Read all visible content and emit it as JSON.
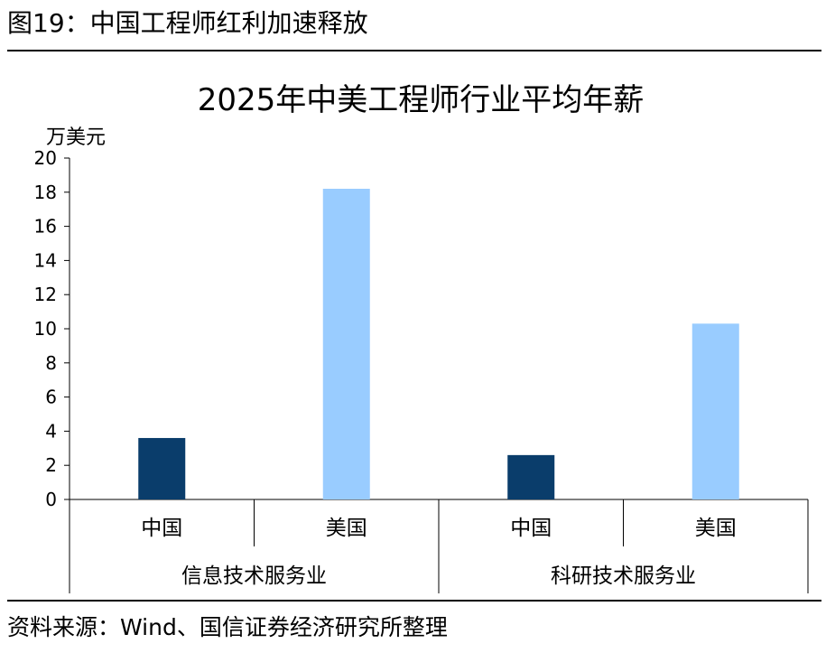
{
  "figure": {
    "title": "图19：中国工程师红利加速释放",
    "source": "资料来源：Wind、国信证券经济研究所整理"
  },
  "chart_data": {
    "type": "bar",
    "title": "2025年中美工程师行业平均年薪",
    "ylabel": "万美元",
    "ylim": [
      0,
      20
    ],
    "yticks": [
      0,
      2,
      4,
      6,
      8,
      10,
      12,
      14,
      16,
      18,
      20
    ],
    "grid": false,
    "groups": [
      {
        "label": "信息技术服务业",
        "categories": [
          "中国",
          "美国"
        ],
        "values": [
          3.6,
          18.2
        ]
      },
      {
        "label": "科研技术服务业",
        "categories": [
          "中国",
          "美国"
        ],
        "values": [
          2.6,
          10.3
        ]
      }
    ],
    "colors": {
      "中国": "#0a3d6b",
      "美国": "#99ccff",
      "axis": "#000000"
    }
  }
}
